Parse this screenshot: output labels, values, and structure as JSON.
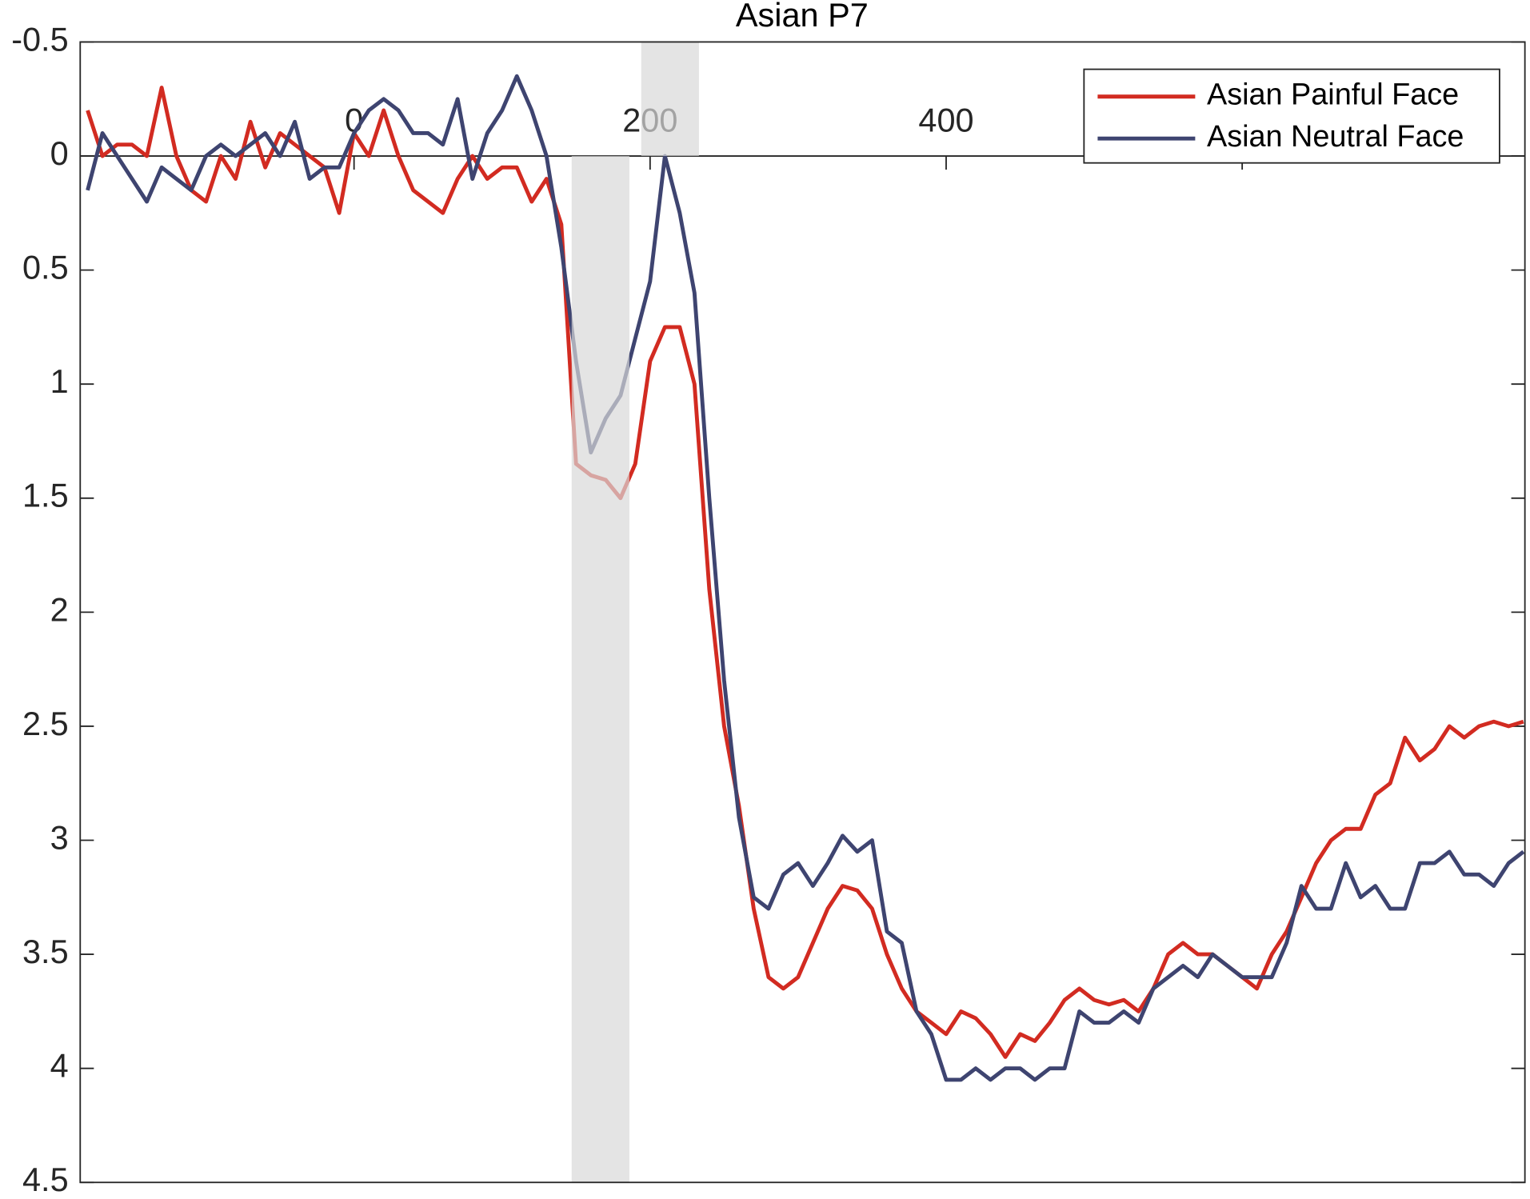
{
  "chart_data": {
    "type": "line",
    "title": "Asian P7",
    "x": [
      -180,
      -170,
      -160,
      -150,
      -140,
      -130,
      -120,
      -110,
      -100,
      -90,
      -80,
      -70,
      -60,
      -50,
      -40,
      -30,
      -20,
      -10,
      0,
      10,
      20,
      30,
      40,
      50,
      60,
      70,
      80,
      90,
      100,
      110,
      120,
      130,
      140,
      150,
      160,
      170,
      180,
      190,
      200,
      210,
      220,
      230,
      240,
      250,
      260,
      270,
      280,
      290,
      300,
      310,
      320,
      330,
      340,
      350,
      360,
      370,
      380,
      390,
      400,
      410,
      420,
      430,
      440,
      450,
      460,
      470,
      480,
      490,
      500,
      510,
      520,
      530,
      540,
      550,
      560,
      570,
      580,
      590,
      600,
      610,
      620,
      630,
      640,
      650,
      660,
      670,
      680,
      690,
      700,
      710,
      720,
      730,
      740,
      750,
      760,
      770,
      780,
      790
    ],
    "series": [
      {
        "name": "Asian Painful Face",
        "color": "#d22b21",
        "values": [
          -0.2,
          0.0,
          -0.05,
          -0.05,
          0.0,
          -0.3,
          0.0,
          0.15,
          0.2,
          0.0,
          0.1,
          -0.15,
          0.05,
          -0.1,
          -0.05,
          0.0,
          0.05,
          0.25,
          -0.1,
          0.0,
          -0.2,
          0.0,
          0.15,
          0.2,
          0.25,
          0.1,
          0.0,
          0.1,
          0.05,
          0.05,
          0.2,
          0.1,
          0.3,
          1.35,
          1.4,
          1.42,
          1.5,
          1.35,
          0.9,
          0.75,
          0.75,
          1.0,
          1.9,
          2.5,
          2.85,
          3.3,
          3.6,
          3.65,
          3.6,
          3.45,
          3.3,
          3.2,
          3.22,
          3.3,
          3.5,
          3.65,
          3.75,
          3.8,
          3.85,
          3.75,
          3.78,
          3.85,
          3.95,
          3.85,
          3.88,
          3.8,
          3.7,
          3.65,
          3.7,
          3.72,
          3.7,
          3.75,
          3.65,
          3.5,
          3.45,
          3.5,
          3.5,
          3.55,
          3.6,
          3.65,
          3.5,
          3.4,
          3.25,
          3.1,
          3.0,
          2.95,
          2.95,
          2.8,
          2.75,
          2.55,
          2.65,
          2.6,
          2.5,
          2.55,
          2.5,
          2.48,
          2.5,
          2.48
        ]
      },
      {
        "name": "Asian Neutral Face",
        "color": "#3e4470",
        "values": [
          0.15,
          -0.1,
          0.0,
          0.1,
          0.2,
          0.05,
          0.1,
          0.15,
          0.0,
          -0.05,
          0.0,
          -0.05,
          -0.1,
          0.0,
          -0.15,
          0.1,
          0.05,
          0.05,
          -0.1,
          -0.2,
          -0.25,
          -0.2,
          -0.1,
          -0.1,
          -0.05,
          -0.25,
          0.1,
          -0.1,
          -0.2,
          -0.35,
          -0.2,
          0.0,
          0.4,
          0.9,
          1.3,
          1.15,
          1.05,
          0.8,
          0.55,
          0.0,
          0.25,
          0.6,
          1.5,
          2.3,
          2.9,
          3.25,
          3.3,
          3.15,
          3.1,
          3.2,
          3.1,
          2.98,
          3.05,
          3.0,
          3.4,
          3.45,
          3.75,
          3.85,
          4.05,
          4.05,
          4.0,
          4.05,
          4.0,
          4.0,
          4.05,
          4.0,
          4.0,
          3.75,
          3.8,
          3.8,
          3.75,
          3.8,
          3.65,
          3.6,
          3.55,
          3.6,
          3.5,
          3.55,
          3.6,
          3.6,
          3.6,
          3.45,
          3.2,
          3.3,
          3.3,
          3.1,
          3.25,
          3.2,
          3.3,
          3.3,
          3.1,
          3.1,
          3.05,
          3.15,
          3.15,
          3.2,
          3.1,
          3.05
        ]
      }
    ],
    "shaded_regions": [
      {
        "x": [
          147,
          186
        ],
        "y": [
          0,
          4.5
        ],
        "color": "#d9d9d9"
      },
      {
        "x": [
          194,
          233
        ],
        "y": [
          -0.5,
          0
        ],
        "color": "#d9d9d9"
      }
    ],
    "xlim": [
      -185,
      791
    ],
    "ylim": [
      -0.5,
      4.5
    ],
    "y_reversed": true,
    "xticks": [
      0,
      200,
      400,
      600
    ],
    "yticks": [
      -0.5,
      0,
      0.5,
      1,
      1.5,
      2,
      2.5,
      3,
      3.5,
      4,
      4.5
    ],
    "legend": "upper right"
  }
}
